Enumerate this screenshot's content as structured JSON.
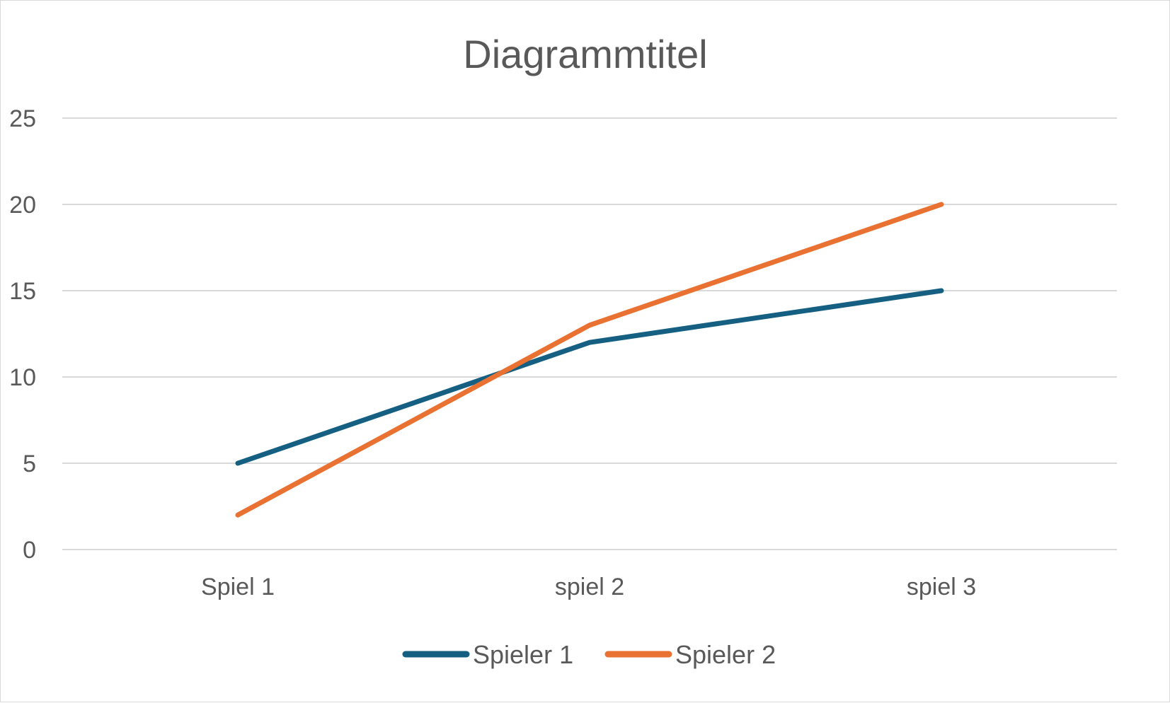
{
  "chart_data": {
    "type": "line",
    "title": "Diagrammtitel",
    "xlabel": "",
    "ylabel": "",
    "categories": [
      "Spiel 1",
      "spiel 2",
      "spiel 3"
    ],
    "ylim": [
      0,
      25
    ],
    "yticks": [
      "0",
      "5",
      "10",
      "15",
      "20",
      "25"
    ],
    "grid": true,
    "legend_position": "bottom",
    "series": [
      {
        "name": "Spieler 1",
        "values": [
          5,
          12,
          15
        ],
        "color": "#156082"
      },
      {
        "name": "Spieler 2",
        "values": [
          2,
          13,
          20
        ],
        "color": "#E97132"
      }
    ]
  }
}
